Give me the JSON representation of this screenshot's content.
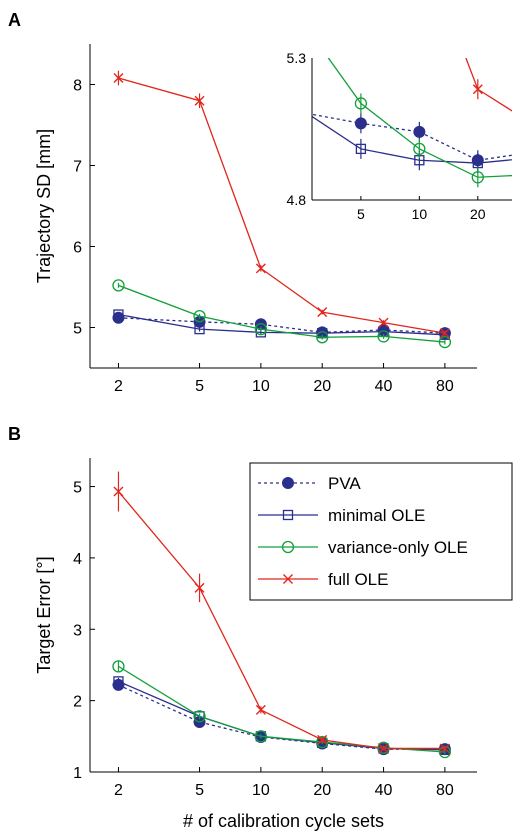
{
  "chart_data": [
    {
      "panel": "A",
      "type": "line",
      "x": [
        2,
        5,
        10,
        20,
        40,
        80
      ],
      "x_scale": "log",
      "xtick_labels": [
        "2",
        "5",
        "10",
        "20",
        "40",
        "80"
      ],
      "xlabel": "",
      "ylabel": "Trajectory SD [mm]",
      "ylim": [
        4.5,
        8.5
      ],
      "yticks": [
        5,
        6,
        7,
        8
      ],
      "ytick_labels": [
        "5",
        "6",
        "7",
        "8"
      ],
      "series": [
        {
          "name": "PVA",
          "values": [
            5.12,
            5.07,
            5.04,
            4.94,
            4.97,
            4.93
          ],
          "err": [
            0.03,
            0.03,
            0.03,
            0.03,
            0.03,
            0.03
          ]
        },
        {
          "name": "minimal OLE",
          "values": [
            5.16,
            4.98,
            4.94,
            4.93,
            4.95,
            4.91
          ],
          "err": [
            0.03,
            0.03,
            0.03,
            0.03,
            0.03,
            0.03
          ]
        },
        {
          "name": "variance-only OLE",
          "values": [
            5.52,
            5.14,
            4.98,
            4.88,
            4.89,
            4.82
          ],
          "err": [
            0.03,
            0.03,
            0.03,
            0.03,
            0.03,
            0.03
          ]
        },
        {
          "name": "full OLE",
          "values": [
            8.08,
            7.8,
            5.73,
            5.19,
            5.06,
            4.93
          ],
          "err": [
            0.09,
            0.09,
            0.04,
            0.03,
            0.03,
            0.03
          ]
        }
      ],
      "inset": {
        "ylim": [
          4.8,
          5.3
        ],
        "ytick_labels": [
          "5.3",
          "4.8"
        ],
        "x_visible": [
          2.8,
          30
        ],
        "xtick_labels": [
          "5",
          "10",
          "20"
        ],
        "series": [
          {
            "name": "PVA",
            "x": [
              2,
              5,
              10,
              20,
              40
            ],
            "values": [
              5.12,
              5.07,
              5.04,
              4.94,
              4.97
            ]
          },
          {
            "name": "minimal OLE",
            "x": [
              2,
              5,
              10,
              20,
              40
            ],
            "values": [
              5.16,
              4.98,
              4.94,
              4.93,
              4.95
            ]
          },
          {
            "name": "variance-only OLE",
            "x": [
              2,
              5,
              10,
              20,
              40
            ],
            "values": [
              5.52,
              5.14,
              4.98,
              4.88,
              4.89
            ]
          },
          {
            "name": "full OLE",
            "x": [
              10,
              20,
              40
            ],
            "values": [
              5.73,
              5.19,
              5.06
            ]
          }
        ]
      }
    },
    {
      "panel": "B",
      "type": "line",
      "x": [
        2,
        5,
        10,
        20,
        40,
        80
      ],
      "x_scale": "log",
      "xtick_labels": [
        "2",
        "5",
        "10",
        "20",
        "40",
        "80"
      ],
      "xlabel": "# of calibration cycle sets",
      "ylabel": "Target Error [°]",
      "ylim": [
        1,
        5.4
      ],
      "yticks": [
        1,
        2,
        3,
        4,
        5
      ],
      "ytick_labels": [
        "1",
        "2",
        "3",
        "4",
        "5"
      ],
      "legend_position": "top-right",
      "series": [
        {
          "name": "PVA",
          "values": [
            2.22,
            1.7,
            1.49,
            1.4,
            1.32,
            1.32
          ],
          "err": [
            0.05,
            0.04,
            0.03,
            0.03,
            0.03,
            0.03
          ]
        },
        {
          "name": "minimal OLE",
          "values": [
            2.27,
            1.78,
            1.5,
            1.41,
            1.33,
            1.31
          ],
          "err": [
            0.05,
            0.04,
            0.03,
            0.03,
            0.03,
            0.03
          ]
        },
        {
          "name": "variance-only OLE",
          "values": [
            2.48,
            1.78,
            1.5,
            1.42,
            1.34,
            1.28
          ],
          "err": [
            0.08,
            0.04,
            0.03,
            0.03,
            0.03,
            0.03
          ]
        },
        {
          "name": "full OLE",
          "values": [
            4.93,
            3.58,
            1.87,
            1.45,
            1.33,
            1.33
          ],
          "err": [
            0.28,
            0.2,
            0.05,
            0.04,
            0.03,
            0.03
          ]
        }
      ]
    }
  ],
  "panel_labels": {
    "a": "A",
    "b": "B"
  },
  "legend": {
    "entries": [
      "PVA",
      "minimal OLE",
      "variance-only OLE",
      "full OLE"
    ]
  },
  "colors": {
    "PVA": "#2b2f8c",
    "minimal OLE": "#2b2f8c",
    "variance-only OLE": "#12a03a",
    "full OLE": "#e1261c",
    "axis": "#000000"
  },
  "markers": {
    "PVA": "filled-circle",
    "minimal OLE": "open-square",
    "variance-only OLE": "open-circle",
    "full OLE": "x-cross"
  }
}
